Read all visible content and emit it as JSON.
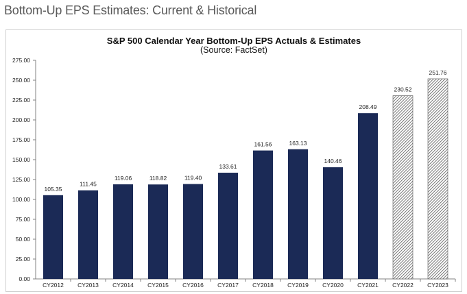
{
  "page": {
    "heading": "Bottom-Up EPS Estimates: Current & Historical"
  },
  "chart_data": {
    "type": "bar",
    "title": "S&P 500 Calendar Year Bottom-Up EPS Actuals & Estimates",
    "subtitle": "(Source: FactSet)",
    "xlabel": "",
    "ylabel": "",
    "ylim": [
      0,
      275
    ],
    "ytick_step": 25,
    "ytick_labels": [
      "0.00",
      "25.00",
      "50.00",
      "75.00",
      "100.00",
      "125.00",
      "150.00",
      "175.00",
      "200.00",
      "225.00",
      "250.00",
      "275.00"
    ],
    "categories": [
      "CY2012",
      "CY2013",
      "CY2014",
      "CY2015",
      "CY2016",
      "CY2017",
      "CY2018",
      "CY2019",
      "CY2020",
      "CY2021",
      "CY2022",
      "CY2023"
    ],
    "values": [
      105.35,
      111.45,
      119.06,
      118.82,
      119.4,
      133.61,
      161.56,
      163.13,
      140.46,
      208.49,
      230.52,
      251.76
    ],
    "data_labels": [
      "105.35",
      "111.45",
      "119.06",
      "118.82",
      "119.40",
      "133.61",
      "161.56",
      "163.13",
      "140.46",
      "208.49",
      "230.52",
      "251.76"
    ],
    "estimate_flags": [
      false,
      false,
      false,
      false,
      false,
      false,
      false,
      false,
      false,
      false,
      true,
      true
    ],
    "grid": false,
    "legend": "none",
    "colors": {
      "actual_bar": "#1b2a56",
      "estimate_hatch": "#555555",
      "axis": "#808080",
      "text": "#222222"
    }
  }
}
